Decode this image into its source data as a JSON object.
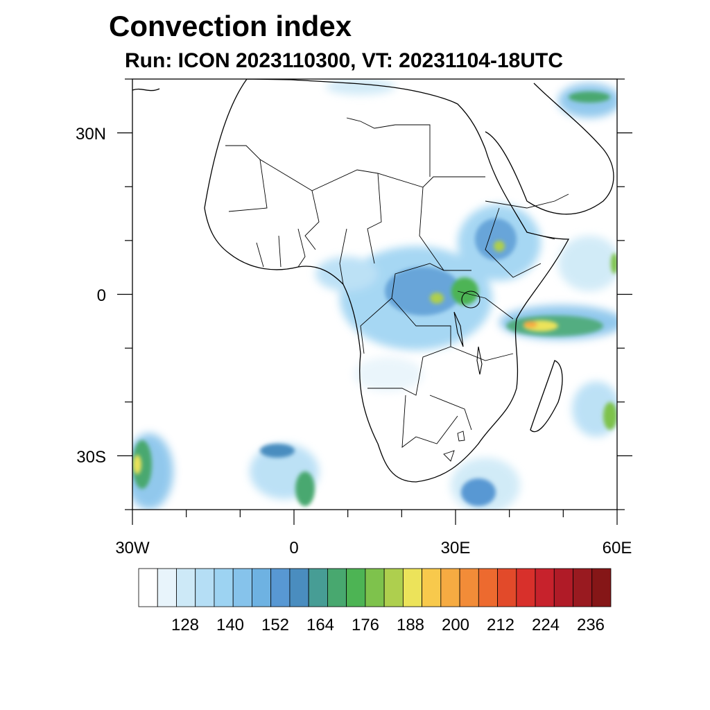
{
  "title": "Convection index",
  "subtitle": "Run: ICON 2023110300,  VT: 20231104-18UTC",
  "map": {
    "lon_range": [
      -30,
      60
    ],
    "lat_range": [
      -40,
      40
    ],
    "lat_ticks": [
      {
        "lat": 30,
        "label": "30N"
      },
      {
        "lat": 0,
        "label": "0"
      },
      {
        "lat": -30,
        "label": "30S"
      }
    ],
    "lon_ticks": [
      {
        "lon": -30,
        "label": "30W"
      },
      {
        "lon": 0,
        "label": "0"
      },
      {
        "lon": 30,
        "label": "30E"
      },
      {
        "lon": 60,
        "label": "60E"
      }
    ]
  },
  "colorbar": {
    "colors": [
      "#ffffff",
      "#e8f4fb",
      "#cde9f7",
      "#b5def5",
      "#9dd3f2",
      "#86c3eb",
      "#6eb2e2",
      "#5898d3",
      "#4a8dbf",
      "#479d95",
      "#48a86f",
      "#4db454",
      "#7ec24c",
      "#aecf4e",
      "#ece35a",
      "#f8c94c",
      "#f6ab42",
      "#f28c38",
      "#ed6a2f",
      "#e24a2a",
      "#d8302b",
      "#c7222c",
      "#b01b27",
      "#991a20",
      "#851617"
    ],
    "labels": [
      "128",
      "140",
      "152",
      "164",
      "176",
      "188",
      "200",
      "212",
      "224",
      "236"
    ]
  }
}
